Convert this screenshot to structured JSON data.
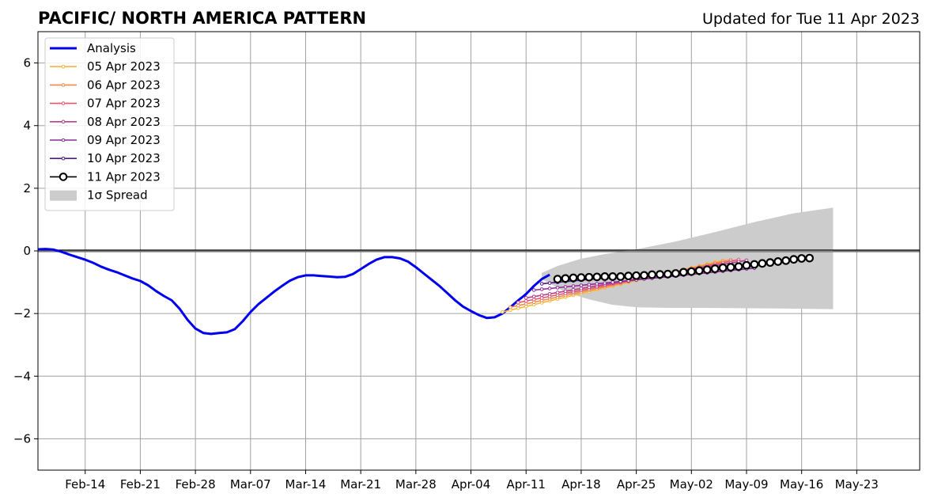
{
  "chart_data": {
    "type": "line",
    "title": "PACIFIC/ NORTH AMERICA PATTERN",
    "subtitle": "Updated for Tue 11 Apr 2023",
    "x_range": [
      "2023-02-08",
      "2023-05-31"
    ],
    "ylim": [
      -7,
      7
    ],
    "x_ticks": [
      {
        "date": "2023-02-14",
        "label": "Feb-14"
      },
      {
        "date": "2023-02-21",
        "label": "Feb-21"
      },
      {
        "date": "2023-02-28",
        "label": "Feb-28"
      },
      {
        "date": "2023-03-07",
        "label": "Mar-07"
      },
      {
        "date": "2023-03-14",
        "label": "Mar-14"
      },
      {
        "date": "2023-03-21",
        "label": "Mar-21"
      },
      {
        "date": "2023-03-28",
        "label": "Mar-28"
      },
      {
        "date": "2023-04-04",
        "label": "Apr-04"
      },
      {
        "date": "2023-04-11",
        "label": "Apr-11"
      },
      {
        "date": "2023-04-18",
        "label": "Apr-18"
      },
      {
        "date": "2023-04-25",
        "label": "Apr-25"
      },
      {
        "date": "2023-05-02",
        "label": "May-02"
      },
      {
        "date": "2023-05-09",
        "label": "May-09"
      },
      {
        "date": "2023-05-16",
        "label": "May-16"
      },
      {
        "date": "2023-05-23",
        "label": "May-23"
      }
    ],
    "y_ticks": [
      {
        "value": -6,
        "label": "−6"
      },
      {
        "value": -4,
        "label": "−4"
      },
      {
        "value": -2,
        "label": "−2"
      },
      {
        "value": 0,
        "label": "0"
      },
      {
        "value": 2,
        "label": "2"
      },
      {
        "value": 4,
        "label": "4"
      },
      {
        "value": 6,
        "label": "6"
      }
    ],
    "grid": true,
    "zero_line": true,
    "legend_position": "top-left",
    "analysis": {
      "name": "Analysis",
      "color": "#0000ee",
      "points": [
        [
          "2023-02-08",
          0.05
        ],
        [
          "2023-02-09",
          0.06
        ],
        [
          "2023-02-10",
          0.04
        ],
        [
          "2023-02-11",
          -0.03
        ],
        [
          "2023-02-12",
          -0.12
        ],
        [
          "2023-02-13",
          -0.2
        ],
        [
          "2023-02-14",
          -0.28
        ],
        [
          "2023-02-15",
          -0.38
        ],
        [
          "2023-02-16",
          -0.5
        ],
        [
          "2023-02-17",
          -0.6
        ],
        [
          "2023-02-18",
          -0.68
        ],
        [
          "2023-02-19",
          -0.78
        ],
        [
          "2023-02-20",
          -0.88
        ],
        [
          "2023-02-21",
          -0.96
        ],
        [
          "2023-02-22",
          -1.1
        ],
        [
          "2023-02-23",
          -1.28
        ],
        [
          "2023-02-24",
          -1.44
        ],
        [
          "2023-02-25",
          -1.58
        ],
        [
          "2023-02-26",
          -1.85
        ],
        [
          "2023-02-27",
          -2.2
        ],
        [
          "2023-02-28",
          -2.48
        ],
        [
          "2023-03-01",
          -2.62
        ],
        [
          "2023-03-02",
          -2.65
        ],
        [
          "2023-03-03",
          -2.62
        ],
        [
          "2023-03-04",
          -2.6
        ],
        [
          "2023-03-05",
          -2.5
        ],
        [
          "2023-03-06",
          -2.25
        ],
        [
          "2023-03-07",
          -1.95
        ],
        [
          "2023-03-08",
          -1.7
        ],
        [
          "2023-03-09",
          -1.5
        ],
        [
          "2023-03-10",
          -1.3
        ],
        [
          "2023-03-11",
          -1.12
        ],
        [
          "2023-03-12",
          -0.95
        ],
        [
          "2023-03-13",
          -0.84
        ],
        [
          "2023-03-14",
          -0.78
        ],
        [
          "2023-03-15",
          -0.78
        ],
        [
          "2023-03-16",
          -0.8
        ],
        [
          "2023-03-17",
          -0.82
        ],
        [
          "2023-03-18",
          -0.84
        ],
        [
          "2023-03-19",
          -0.83
        ],
        [
          "2023-03-20",
          -0.74
        ],
        [
          "2023-03-21",
          -0.58
        ],
        [
          "2023-03-22",
          -0.42
        ],
        [
          "2023-03-23",
          -0.28
        ],
        [
          "2023-03-24",
          -0.2
        ],
        [
          "2023-03-25",
          -0.2
        ],
        [
          "2023-03-26",
          -0.24
        ],
        [
          "2023-03-27",
          -0.34
        ],
        [
          "2023-03-28",
          -0.52
        ],
        [
          "2023-03-29",
          -0.72
        ],
        [
          "2023-03-30",
          -0.92
        ],
        [
          "2023-03-31",
          -1.12
        ],
        [
          "2023-04-01",
          -1.35
        ],
        [
          "2023-04-02",
          -1.58
        ],
        [
          "2023-04-03",
          -1.78
        ],
        [
          "2023-04-04",
          -1.92
        ],
        [
          "2023-04-05",
          -2.05
        ],
        [
          "2023-04-06",
          -2.14
        ],
        [
          "2023-04-07",
          -2.12
        ],
        [
          "2023-04-08",
          -2.0
        ],
        [
          "2023-04-09",
          -1.8
        ],
        [
          "2023-04-10",
          -1.58
        ],
        [
          "2023-04-11",
          -1.38
        ],
        [
          "2023-04-12",
          -1.12
        ],
        [
          "2023-04-13",
          -0.9
        ],
        [
          "2023-04-14",
          -0.76
        ]
      ]
    },
    "forecasts": [
      {
        "name": "05 Apr 2023",
        "color": "#f5b83a",
        "start": "2023-04-08",
        "end": "2023-05-06",
        "y_start": -1.95,
        "y_end": -0.3
      },
      {
        "name": "06 Apr 2023",
        "color": "#f08a4b",
        "start": "2023-04-09",
        "end": "2023-05-07",
        "y_start": -1.8,
        "y_end": -0.28
      },
      {
        "name": "07 Apr 2023",
        "color": "#e0566e",
        "start": "2023-04-10",
        "end": "2023-05-08",
        "y_start": -1.65,
        "y_end": -0.28
      },
      {
        "name": "08 Apr 2023",
        "color": "#b83d8c",
        "start": "2023-04-11",
        "end": "2023-05-09",
        "y_start": -1.5,
        "y_end": -0.3
      },
      {
        "name": "09 Apr 2023",
        "color": "#8a2a9a",
        "start": "2023-04-12",
        "end": "2023-05-10",
        "y_start": -1.25,
        "y_end": -0.55
      },
      {
        "name": "10 Apr 2023",
        "color": "#4a1a8e",
        "start": "2023-04-13",
        "end": "2023-04-26",
        "y_start": -1.05,
        "y_end": -0.75
      }
    ],
    "current_forecast": {
      "name": "11 Apr 2023",
      "color": "#000000",
      "points": [
        [
          "2023-04-15",
          -0.9
        ],
        [
          "2023-04-16",
          -0.88
        ],
        [
          "2023-04-17",
          -0.86
        ],
        [
          "2023-04-18",
          -0.85
        ],
        [
          "2023-04-19",
          -0.84
        ],
        [
          "2023-04-20",
          -0.83
        ],
        [
          "2023-04-21",
          -0.82
        ],
        [
          "2023-04-22",
          -0.82
        ],
        [
          "2023-04-23",
          -0.82
        ],
        [
          "2023-04-24",
          -0.8
        ],
        [
          "2023-04-25",
          -0.79
        ],
        [
          "2023-04-26",
          -0.78
        ],
        [
          "2023-04-27",
          -0.76
        ],
        [
          "2023-04-28",
          -0.75
        ],
        [
          "2023-04-29",
          -0.74
        ],
        [
          "2023-04-30",
          -0.72
        ],
        [
          "2023-05-01",
          -0.68
        ],
        [
          "2023-05-02",
          -0.66
        ],
        [
          "2023-05-03",
          -0.63
        ],
        [
          "2023-05-04",
          -0.6
        ],
        [
          "2023-05-05",
          -0.57
        ],
        [
          "2023-05-06",
          -0.54
        ],
        [
          "2023-05-07",
          -0.52
        ],
        [
          "2023-05-08",
          -0.5
        ],
        [
          "2023-05-09",
          -0.46
        ],
        [
          "2023-05-10",
          -0.43
        ],
        [
          "2023-05-11",
          -0.4
        ],
        [
          "2023-05-12",
          -0.37
        ],
        [
          "2023-05-13",
          -0.34
        ],
        [
          "2023-05-14",
          -0.31
        ],
        [
          "2023-05-15",
          -0.27
        ],
        [
          "2023-05-16",
          -0.24
        ],
        [
          "2023-05-17",
          -0.23
        ]
      ]
    },
    "spread": {
      "name": "1σ Spread",
      "color": "#cccccc",
      "upper": [
        [
          "2023-04-13",
          -0.7
        ],
        [
          "2023-04-15",
          -0.48
        ],
        [
          "2023-04-18",
          -0.25
        ],
        [
          "2023-04-21",
          -0.1
        ],
        [
          "2023-04-25",
          0.05
        ],
        [
          "2023-04-30",
          0.3
        ],
        [
          "2023-05-05",
          0.6
        ],
        [
          "2023-05-10",
          0.92
        ],
        [
          "2023-05-15",
          1.2
        ],
        [
          "2023-05-20",
          1.38
        ]
      ],
      "lower": [
        [
          "2023-04-13",
          -0.9
        ],
        [
          "2023-04-16",
          -1.32
        ],
        [
          "2023-04-19",
          -1.55
        ],
        [
          "2023-04-22",
          -1.72
        ],
        [
          "2023-04-25",
          -1.8
        ],
        [
          "2023-04-29",
          -1.82
        ],
        [
          "2023-05-03",
          -1.82
        ],
        [
          "2023-05-08",
          -1.83
        ],
        [
          "2023-05-13",
          -1.84
        ],
        [
          "2023-05-20",
          -1.86
        ]
      ]
    },
    "legend": [
      {
        "label": "Analysis",
        "kind": "thick-line",
        "color": "#0000ee"
      },
      {
        "label": "05 Apr 2023",
        "kind": "line-dot",
        "color": "#f5b83a"
      },
      {
        "label": "06 Apr 2023",
        "kind": "line-dot",
        "color": "#f08a4b"
      },
      {
        "label": "07 Apr 2023",
        "kind": "line-dot",
        "color": "#e0566e"
      },
      {
        "label": "08 Apr 2023",
        "kind": "line-dot",
        "color": "#b83d8c"
      },
      {
        "label": "09 Apr 2023",
        "kind": "line-dot",
        "color": "#8a2a9a"
      },
      {
        "label": "10 Apr 2023",
        "kind": "line-dot",
        "color": "#4a1a8e"
      },
      {
        "label": "11 Apr 2023",
        "kind": "line-circle",
        "color": "#000000"
      },
      {
        "label": "1σ Spread",
        "kind": "patch",
        "color": "#cccccc"
      }
    ]
  }
}
